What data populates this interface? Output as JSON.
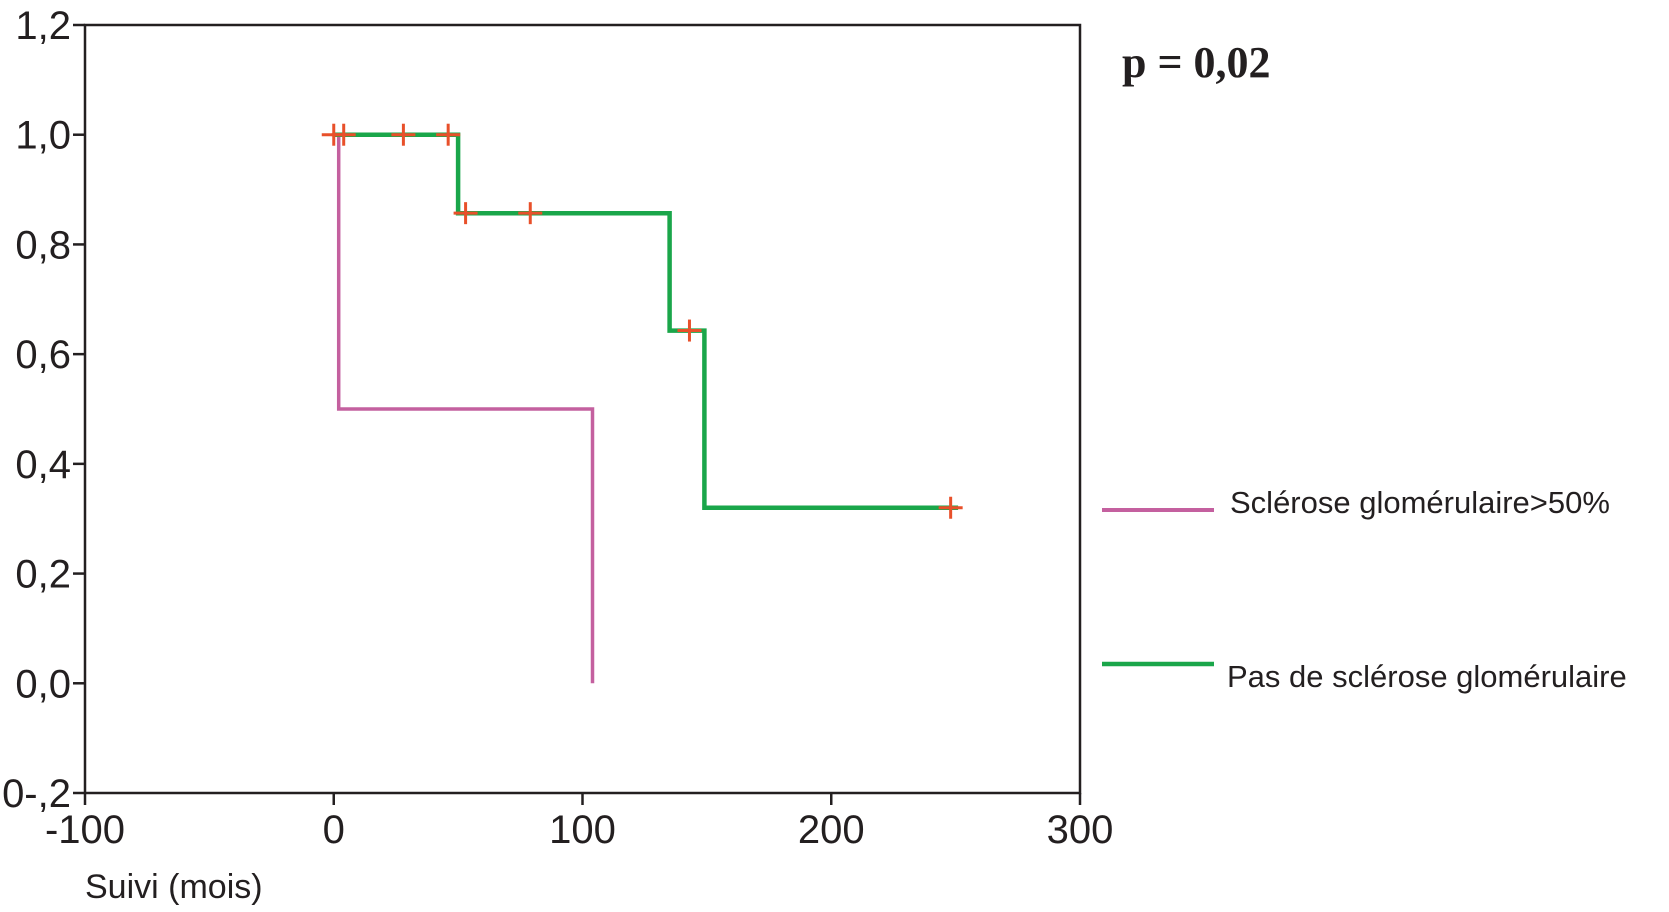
{
  "chart_data": {
    "type": "line",
    "subtype": "kaplan-meier-step",
    "title": "",
    "xlabel": "Suivi (mois)",
    "ylabel": "",
    "xlim": [
      -100,
      300
    ],
    "ylim": [
      -0.2,
      1.2
    ],
    "x_ticks": [
      -100,
      0,
      100,
      200,
      300
    ],
    "x_tick_labels": [
      "-100",
      "0",
      "100",
      "200",
      "300"
    ],
    "y_ticks": [
      -0.2,
      0.0,
      0.2,
      0.4,
      0.6,
      0.8,
      1.0,
      1.2
    ],
    "y_tick_labels": [
      "0-,2",
      "0,0",
      "0,2",
      "0,4",
      "0,6",
      "0,8",
      "1,0",
      "1,2"
    ],
    "grid": false,
    "legend_position": "right",
    "annotation": "p = 0,02",
    "censor_color": "#e8502a",
    "series": [
      {
        "name": "Sclérose glomérulaire>50%",
        "color": "#c4609f",
        "steps": [
          [
            2,
            1.0
          ],
          [
            2,
            0.5
          ],
          [
            104,
            0.5
          ],
          [
            104,
            0.0
          ]
        ],
        "censored": []
      },
      {
        "name": "Pas de sclérose glomérulaire",
        "color": "#1aa64a",
        "steps": [
          [
            0,
            1.0
          ],
          [
            50,
            1.0
          ],
          [
            50,
            0.857
          ],
          [
            135,
            0.857
          ],
          [
            135,
            0.643
          ],
          [
            149,
            0.643
          ],
          [
            149,
            0.32
          ],
          [
            251,
            0.32
          ]
        ],
        "censored": [
          [
            0,
            1.0
          ],
          [
            4,
            1.0
          ],
          [
            28,
            1.0
          ],
          [
            46,
            1.0
          ],
          [
            53,
            0.857
          ],
          [
            79,
            0.857
          ],
          [
            143,
            0.643
          ],
          [
            248,
            0.32
          ]
        ]
      }
    ]
  }
}
